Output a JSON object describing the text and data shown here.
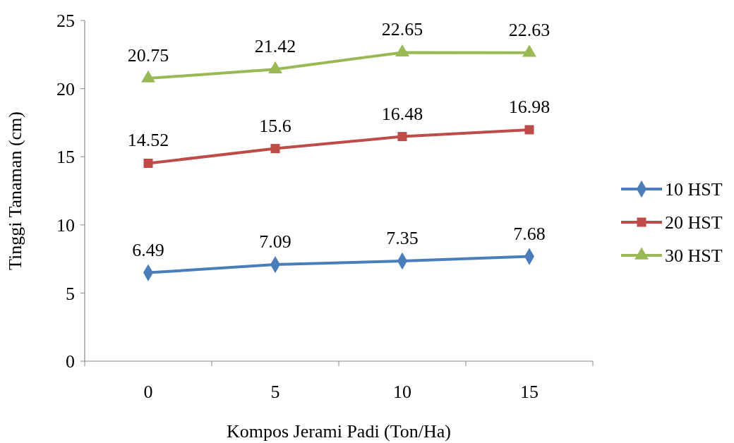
{
  "chart_data": {
    "type": "line",
    "xlabel": "Kompos Jerami Padi (Ton/Ha)",
    "ylabel": "Tinggi Tanaman (cm)",
    "categories": [
      "0",
      "5",
      "10",
      "15"
    ],
    "series": [
      {
        "name": "10 HST",
        "color": "#4a7ebb",
        "marker": "diamond",
        "values": [
          6.49,
          7.09,
          7.35,
          7.68
        ]
      },
      {
        "name": "20 HST",
        "color": "#be4b48",
        "marker": "square",
        "values": [
          14.52,
          15.6,
          16.48,
          16.98
        ]
      },
      {
        "name": "30 HST",
        "color": "#98b954",
        "marker": "triangle",
        "values": [
          20.75,
          21.42,
          22.65,
          22.63
        ]
      }
    ],
    "ylim": [
      0,
      25
    ],
    "yticks": [
      0,
      5,
      10,
      15,
      20,
      25
    ],
    "grid": false,
    "legend": "right",
    "data_labels": true,
    "line_style": "solid"
  }
}
